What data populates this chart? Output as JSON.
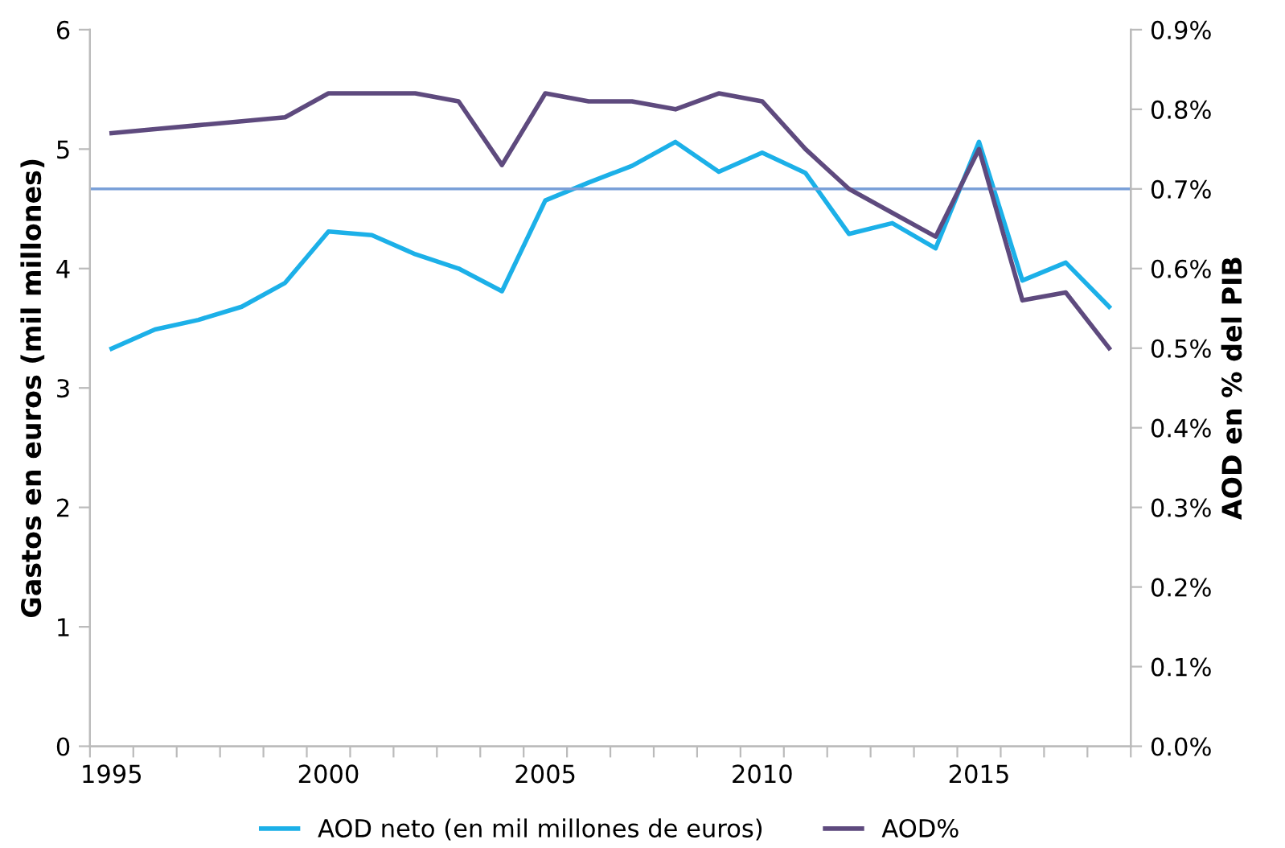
{
  "chart_data": {
    "type": "line",
    "ylabel": "Gastos en euros (mil millones)",
    "y2label": "AOD en % del PIB",
    "categories": [
      "1995",
      null,
      null,
      null,
      null,
      "2000",
      null,
      null,
      null,
      null,
      "2005",
      null,
      null,
      null,
      null,
      "2010",
      null,
      null,
      null,
      null,
      "2015",
      null,
      null,
      null
    ],
    "series": [
      {
        "name": "AOD neto (en mil millones de euros)",
        "color": "#1cb0e8",
        "values": [
          3.33,
          3.49,
          3.57,
          3.68,
          3.88,
          4.31,
          4.28,
          4.12,
          4.0,
          3.81,
          4.57,
          4.72,
          4.86,
          5.06,
          4.81,
          4.97,
          4.8,
          4.29,
          4.38,
          4.17,
          5.06,
          3.9,
          4.05,
          3.68
        ]
      },
      {
        "name": "AOD%",
        "color": "#5e4a7e",
        "axis": "y2",
        "values": [
          0.77,
          0.775,
          0.78,
          0.785,
          0.79,
          0.82,
          0.82,
          0.82,
          0.81,
          0.73,
          0.82,
          0.81,
          0.81,
          0.8,
          0.82,
          0.81,
          0.75,
          0.7,
          0.67,
          0.64,
          0.75,
          0.56,
          0.57,
          0.5
        ]
      }
    ],
    "ylim": [
      0,
      6
    ],
    "yticks": [
      0,
      1,
      2,
      3,
      4,
      5,
      6
    ],
    "y2lim": [
      0,
      0.9
    ],
    "y2ticks": [
      {
        "value": 0,
        "label": "0.0%"
      },
      {
        "value": 0.1,
        "label": "0.1%"
      },
      {
        "value": 0.2,
        "label": "0.2%"
      },
      {
        "value": 0.3,
        "label": "0.3%"
      },
      {
        "value": 0.4,
        "label": "0.4%"
      },
      {
        "value": 0.5,
        "label": "0.5%"
      },
      {
        "value": 0.6,
        "label": "0.6%"
      },
      {
        "value": 0.7,
        "label": "0.7%"
      },
      {
        "value": 0.8,
        "label": "0.8%"
      },
      {
        "value": 0.9,
        "label": "0.9%"
      }
    ],
    "ref_lines": [
      {
        "axis": "y2",
        "value": 0.7,
        "color": "#7aa0d8"
      }
    ],
    "grid": false,
    "legend": "bottom",
    "marker": "none",
    "line_style": "solid"
  }
}
